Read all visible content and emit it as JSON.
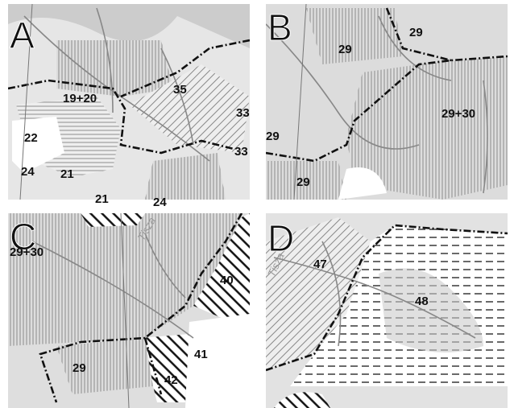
{
  "panels": [
    {
      "letter": "A",
      "labels": [
        "19+20",
        "35",
        "33",
        "33",
        "22",
        "24",
        "21",
        "21",
        "24"
      ]
    },
    {
      "letter": "B",
      "labels": [
        "29",
        "29",
        "29+30",
        "29",
        "29"
      ]
    },
    {
      "letter": "C",
      "labels": [
        "29+30",
        "Tisza",
        "40",
        "41",
        "29",
        "42"
      ]
    },
    {
      "letter": "D",
      "labels": [
        "Tisza",
        "47",
        "48"
      ]
    }
  ]
}
